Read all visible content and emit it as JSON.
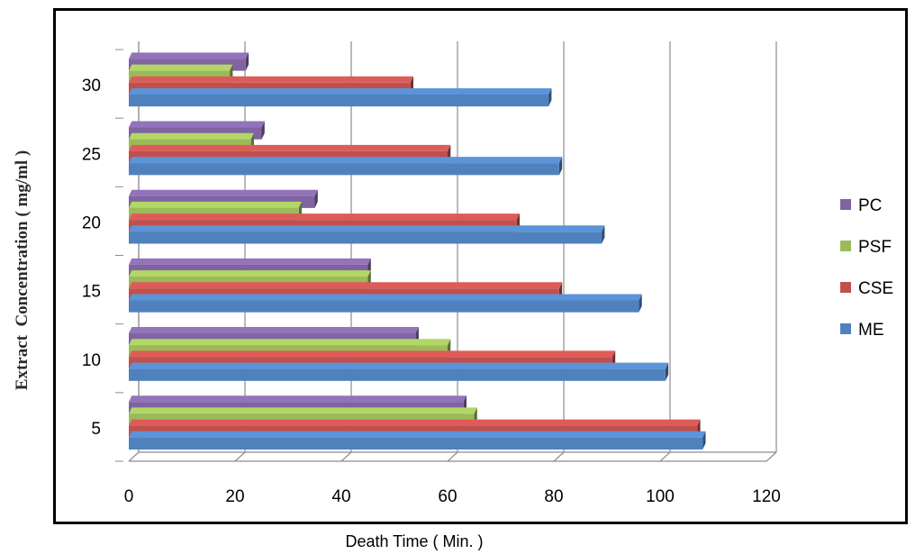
{
  "chart_data": {
    "type": "bar",
    "orientation": "horizontal",
    "style": "3d-clustered",
    "categories": [
      "5",
      "10",
      "15",
      "20",
      "25",
      "30"
    ],
    "series": [
      {
        "name": "ME",
        "color": "#4f81bd",
        "values": [
          108,
          101,
          96,
          89,
          81,
          79
        ]
      },
      {
        "name": "CSE",
        "color": "#c0504d",
        "values": [
          107,
          91,
          81,
          73,
          60,
          53
        ]
      },
      {
        "name": "PSF",
        "color": "#9bbb59",
        "values": [
          65,
          60,
          45,
          32,
          23,
          19
        ]
      },
      {
        "name": "PC",
        "color": "#8064a2",
        "values": [
          63,
          54,
          45,
          35,
          25,
          22
        ]
      }
    ],
    "xlabel": "Death Time ( Min. )",
    "ylabel": "Extract  Concentration ( mg/ml )",
    "xlim": [
      0,
      120
    ],
    "x_ticks": [
      "0",
      "20",
      "40",
      "60",
      "80",
      "100",
      "120"
    ],
    "grid": "vertical",
    "legend_position": "right",
    "legend_order": [
      "PC",
      "PSF",
      "CSE",
      "ME"
    ]
  }
}
